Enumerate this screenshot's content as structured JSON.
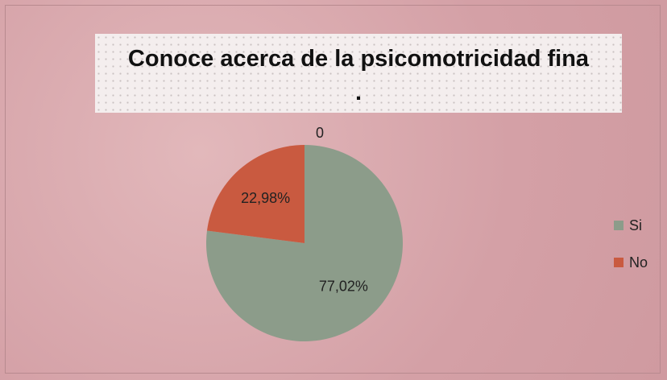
{
  "chart_data": {
    "type": "pie",
    "title": "Conoce acerca de la psicomotricidad fina\n.",
    "categories": [
      "Si",
      "No",
      null
    ],
    "values": [
      77.02,
      22.98,
      0
    ],
    "value_labels": [
      "77,02%",
      "22,98%",
      "0"
    ],
    "colors": [
      "#8c9c8a",
      "#c95a40"
    ],
    "legend": "right"
  }
}
